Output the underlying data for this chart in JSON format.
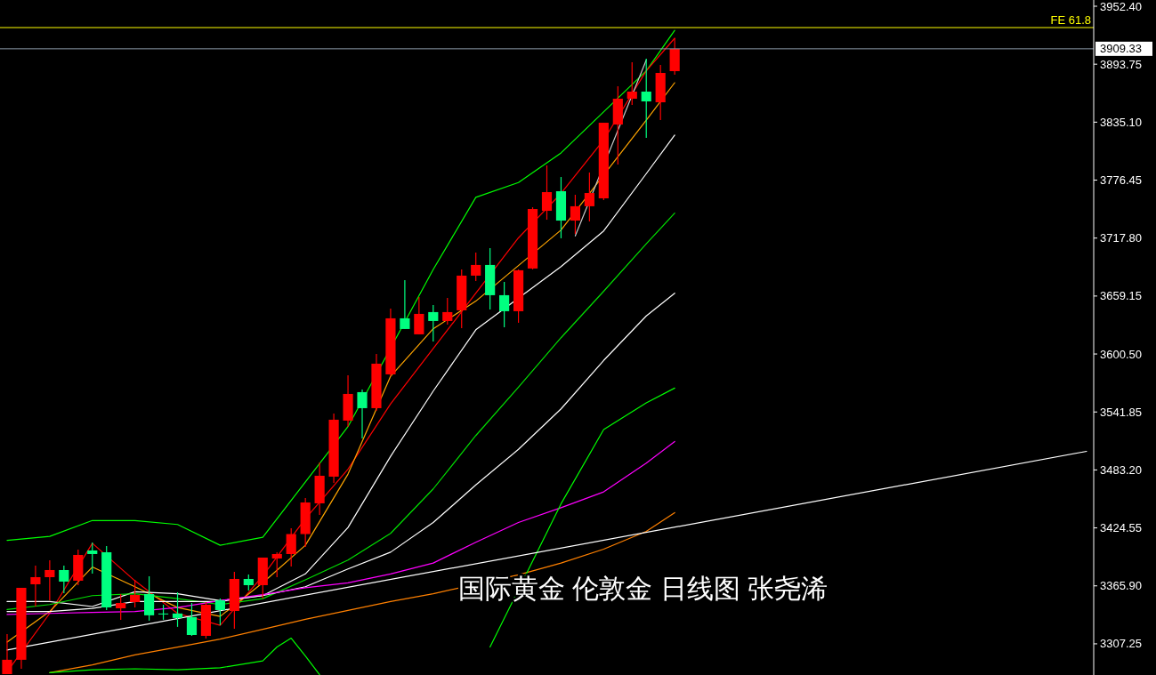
{
  "chart_data": {
    "type": "candlestick",
    "categories": [
      null,
      null,
      null,
      null,
      null,
      null,
      null,
      null,
      null,
      null,
      null,
      null,
      null,
      null,
      null,
      null,
      null,
      null,
      null,
      null,
      null,
      null,
      null,
      null,
      null,
      null,
      null,
      null,
      null,
      null,
      null,
      null,
      null,
      null,
      null,
      null,
      null,
      null,
      null,
      null,
      null,
      null,
      null,
      null,
      null,
      null,
      null,
      null,
      null,
      null,
      null,
      null,
      null,
      null,
      null,
      null,
      null,
      null,
      null,
      null,
      null,
      null,
      null,
      null,
      null,
      null,
      null,
      null,
      null,
      null,
      null,
      null,
      null,
      null,
      null,
      null,
      null
    ],
    "ohlc": [
      [
        3276.6,
        3317.1,
        3276.6,
        3291.1
      ],
      [
        3291.1,
        3363.9,
        3282.0,
        3363.9
      ],
      [
        3367.5,
        3386.4,
        3345.0,
        3374.7
      ],
      [
        3374.7,
        3391.8,
        3351.3,
        3381.9
      ],
      [
        3381.9,
        3386.4,
        3358.5,
        3370.2
      ],
      [
        3371.1,
        3402.6,
        3366.6,
        3397.2
      ],
      [
        3401.7,
        3409.8,
        3378.3,
        3398.1
      ],
      [
        3399.9,
        3406.2,
        3341.4,
        3344.1
      ],
      [
        3343.2,
        3357.6,
        3331.6,
        3348.6
      ],
      [
        3349.5,
        3372.0,
        3344.1,
        3356.7
      ],
      [
        3357.6,
        3375.6,
        3330.7,
        3336.1
      ],
      [
        3337.9,
        3346.8,
        3331.6,
        3337.0
      ],
      [
        3337.9,
        3359.4,
        3324.4,
        3333.4
      ],
      [
        3334.3,
        3348.6,
        3315.3,
        3316.2
      ],
      [
        3315.3,
        3349.5,
        3312.6,
        3346.8
      ],
      [
        3351.3,
        3353.1,
        3326.2,
        3341.4
      ],
      [
        3340.5,
        3380.1,
        3322.5,
        3372.9
      ],
      [
        3372.9,
        3377.4,
        3361.2,
        3366.6
      ],
      [
        3366.6,
        3394.5,
        3353.1,
        3394.5
      ],
      [
        3393.6,
        3399.9,
        3374.7,
        3398.1
      ],
      [
        3398.1,
        3424.2,
        3385.5,
        3418.3
      ],
      [
        3418.3,
        3454.8,
        3405.3,
        3450.3
      ],
      [
        3449.4,
        3490.8,
        3437.7,
        3477.3
      ],
      [
        3476.4,
        3540.3,
        3470.1,
        3534.0
      ],
      [
        3533.1,
        3579.0,
        3526.8,
        3560.1
      ],
      [
        3561.9,
        3564.6,
        3515.1,
        3545.7
      ],
      [
        3545.7,
        3600.6,
        3543.0,
        3590.7
      ],
      [
        3579.9,
        3646.5,
        3578.1,
        3636.6
      ],
      [
        3636.6,
        3675.3,
        3625.8,
        3625.8
      ],
      [
        3620.4,
        3658.2,
        3620.4,
        3641.1
      ],
      [
        3642.9,
        3650.1,
        3613.2,
        3633.9
      ],
      [
        3633.9,
        3657.3,
        3630.3,
        3642.9
      ],
      [
        3644.7,
        3686.1,
        3626.7,
        3679.8
      ],
      [
        3679.8,
        3703.2,
        3674.4,
        3690.6
      ],
      [
        3690.6,
        3707.7,
        3645.6,
        3660.0
      ],
      [
        3660.0,
        3673.5,
        3627.6,
        3643.8
      ],
      [
        3643.8,
        3686.1,
        3632.1,
        3685.2
      ],
      [
        3687.0,
        3749.0,
        3686.1,
        3747.2
      ],
      [
        3745.4,
        3791.3,
        3736.4,
        3764.3
      ],
      [
        3765.2,
        3779.6,
        3717.6,
        3735.5
      ],
      [
        3735.5,
        3761.6,
        3722.0,
        3750.0
      ],
      [
        3750.0,
        3784.1,
        3734.7,
        3763.4
      ],
      [
        3758.0,
        3834.5,
        3756.3,
        3834.5
      ],
      [
        3832.7,
        3871.4,
        3792.2,
        3858.8
      ],
      [
        3858.8,
        3895.7,
        3852.5,
        3866.0
      ],
      [
        3866.0,
        3899.3,
        3819.2,
        3856.1
      ],
      [
        3855.2,
        3893.0,
        3837.2,
        3884.9
      ],
      [
        3886.7,
        3920.0,
        3883.1,
        3909.3
      ],
      null,
      null,
      null,
      null,
      null,
      null,
      null,
      null,
      null,
      null,
      null,
      null,
      null,
      null,
      null,
      null,
      null,
      null,
      null,
      null,
      null,
      null,
      null,
      null,
      null,
      null,
      null,
      null,
      null
    ],
    "series": [
      {
        "type": "line",
        "color": "#00ff00",
        "values": [
          3412,
          null,
          null,
          3416,
          null,
          null,
          3432,
          null,
          null,
          3432,
          null,
          null,
          3428,
          null,
          null,
          3407,
          null,
          null,
          3415,
          null,
          null,
          null,
          null,
          null,
          3527,
          null,
          null,
          null,
          null,
          null,
          3686,
          null,
          null,
          3759,
          null,
          null,
          3774,
          null,
          null,
          3804,
          null,
          null,
          null,
          null,
          null,
          3887,
          null,
          3928,
          null,
          null,
          null,
          null,
          null,
          null,
          null,
          null,
          null,
          null,
          null,
          null,
          null,
          null,
          null,
          null,
          null,
          null,
          null,
          null,
          null,
          null,
          null,
          null,
          null,
          null,
          null,
          null,
          null
        ]
      },
      {
        "type": "line",
        "color": "#ff0000",
        "values": [
          3279,
          null,
          null,
          3338,
          null,
          null,
          3409,
          null,
          null,
          3371,
          null,
          null,
          3338,
          null,
          null,
          3326,
          null,
          null,
          3376,
          null,
          null,
          3434,
          null,
          null,
          3484,
          null,
          null,
          3550,
          null,
          null,
          3606,
          null,
          null,
          3662,
          null,
          null,
          3718,
          null,
          null,
          3763,
          null,
          null,
          3817,
          null,
          null,
          3887,
          null,
          3920,
          null,
          null,
          null,
          null,
          null,
          null,
          null,
          null,
          null,
          null,
          null,
          null,
          null,
          null,
          null,
          null,
          null,
          null,
          null,
          null,
          null,
          null,
          null,
          null,
          null,
          null,
          null,
          null,
          null
        ]
      },
      {
        "type": "line",
        "color": "#ffa500",
        "values": [
          3309,
          null,
          null,
          3340,
          null,
          null,
          3385,
          null,
          null,
          3365,
          null,
          null,
          3344,
          null,
          null,
          3335,
          null,
          null,
          3369,
          null,
          null,
          3407,
          null,
          null,
          3479,
          null,
          null,
          3578,
          null,
          null,
          3626,
          null,
          null,
          3654,
          null,
          null,
          null,
          null,
          null,
          3726,
          null,
          null,
          null,
          null,
          null,
          3837,
          null,
          3875,
          null,
          null,
          null,
          null,
          null,
          null,
          null,
          null,
          null,
          null,
          null,
          null,
          null,
          null,
          null,
          null,
          null,
          null,
          null,
          null,
          null,
          null,
          null,
          null,
          null,
          null,
          null,
          null,
          null
        ]
      },
      {
        "type": "line",
        "color": "#ffffff",
        "values": [
          3350,
          null,
          null,
          3350,
          null,
          null,
          3345,
          null,
          null,
          3360,
          null,
          null,
          3358,
          null,
          null,
          3351,
          null,
          null,
          3356,
          null,
          null,
          3378,
          null,
          null,
          3425,
          null,
          null,
          3497,
          null,
          null,
          3563,
          null,
          null,
          3625,
          null,
          null,
          null,
          null,
          null,
          3689,
          null,
          null,
          3725,
          null,
          null,
          3783,
          null,
          3822,
          null,
          null,
          null,
          null,
          null,
          null,
          null,
          null,
          null,
          null,
          null,
          null,
          null,
          null,
          null,
          null,
          null,
          null,
          null,
          null,
          null,
          null,
          null,
          null,
          null,
          null,
          null,
          null,
          null
        ]
      },
      {
        "type": "line",
        "color": "#00e000",
        "values": [
          3342,
          null,
          null,
          3347,
          null,
          null,
          3356,
          null,
          null,
          3358,
          null,
          null,
          3353,
          null,
          null,
          3347,
          null,
          null,
          3353,
          null,
          null,
          3372,
          null,
          null,
          3392,
          null,
          null,
          3419,
          null,
          null,
          3464,
          null,
          null,
          3518,
          null,
          null,
          3567,
          null,
          null,
          3617,
          null,
          null,
          3664,
          null,
          null,
          3712,
          null,
          3743,
          null,
          null,
          null,
          null,
          null,
          null,
          null,
          null,
          null,
          null,
          null,
          null,
          null,
          null,
          null,
          null,
          null,
          null,
          null,
          null,
          null,
          null,
          null,
          null,
          null,
          null,
          null,
          null,
          null
        ]
      },
      {
        "type": "line",
        "color": "#ffffff",
        "values": [
          3340,
          null,
          null,
          3340,
          null,
          null,
          3343,
          null,
          null,
          3350,
          null,
          null,
          3350,
          null,
          null,
          3350,
          null,
          null,
          3356,
          null,
          null,
          3365,
          null,
          null,
          3383,
          null,
          null,
          3400,
          null,
          null,
          3430,
          null,
          null,
          3468,
          null,
          null,
          3504,
          null,
          null,
          3545,
          null,
          null,
          3594,
          null,
          null,
          3639,
          null,
          3662,
          null,
          null,
          null,
          null,
          null,
          null,
          null,
          null,
          null,
          null,
          null,
          null,
          null,
          null,
          null,
          null,
          null,
          null,
          null,
          null,
          null,
          null,
          null,
          null,
          null,
          null,
          null,
          null,
          null
        ]
      },
      {
        "type": "line",
        "color": "#ff00ff",
        "values": [
          3337,
          null,
          null,
          3338,
          null,
          null,
          3339,
          null,
          null,
          3340,
          null,
          null,
          3344,
          null,
          null,
          3351,
          null,
          null,
          3357,
          null,
          null,
          3364,
          null,
          null,
          3369,
          null,
          null,
          3378,
          null,
          null,
          3389,
          null,
          null,
          3410,
          null,
          null,
          3430,
          null,
          null,
          3445,
          null,
          null,
          3461,
          null,
          null,
          3490,
          null,
          3512,
          null,
          null,
          null,
          null,
          null,
          null,
          null,
          null,
          null,
          null,
          null,
          null,
          null,
          null,
          null,
          null,
          null,
          null,
          null,
          null,
          null,
          null,
          null,
          null,
          null,
          null,
          null,
          null,
          null
        ]
      },
      {
        "type": "line",
        "color": "#ff8000",
        "values": [
          null,
          null,
          null,
          3278,
          null,
          null,
          3286,
          null,
          null,
          3296,
          null,
          null,
          3304,
          null,
          null,
          3312,
          null,
          null,
          3322,
          null,
          null,
          3332,
          null,
          null,
          3341,
          null,
          null,
          3350,
          null,
          null,
          3358,
          null,
          null,
          null,
          null,
          null,
          3377,
          null,
          null,
          3389,
          null,
          null,
          3403,
          null,
          null,
          3421,
          null,
          3440,
          null,
          null,
          null,
          null,
          null,
          null,
          null,
          null,
          null,
          null,
          null,
          null,
          null,
          null,
          null,
          null,
          null,
          null,
          null,
          null,
          null,
          null,
          null,
          null,
          null,
          null,
          null,
          null,
          null
        ]
      },
      {
        "type": "line",
        "color": "#00ff00",
        "values": [
          null,
          null,
          null,
          3278,
          null,
          null,
          3281,
          null,
          null,
          3282,
          null,
          null,
          3281,
          null,
          null,
          3283,
          null,
          null,
          3290,
          3304,
          3313,
          3295,
          3276,
          null,
          null,
          null,
          null,
          null,
          null,
          null,
          null,
          null,
          null,
          null,
          null,
          null,
          null,
          null,
          null,
          null,
          null,
          null,
          null,
          null,
          null,
          null,
          null,
          null,
          null,
          null,
          null,
          null,
          null,
          null,
          null,
          null,
          null,
          null,
          null,
          null,
          null,
          null,
          null,
          null,
          null,
          null,
          null,
          null,
          null,
          null,
          null,
          null,
          null,
          null,
          null,
          null,
          null
        ]
      },
      {
        "type": "line",
        "color": "#00ff00",
        "values": [
          null,
          null,
          null,
          null,
          null,
          null,
          null,
          null,
          null,
          null,
          null,
          null,
          null,
          null,
          null,
          null,
          null,
          null,
          null,
          null,
          null,
          null,
          null,
          null,
          null,
          null,
          null,
          null,
          null,
          null,
          null,
          null,
          null,
          null,
          3304,
          null,
          null,
          null,
          null,
          3449,
          null,
          null,
          3524,
          null,
          null,
          3551,
          null,
          3566,
          null,
          null,
          null,
          null,
          null,
          null,
          null,
          null,
          null,
          null,
          null,
          null,
          null,
          null,
          null,
          null,
          null,
          null,
          null,
          null,
          null,
          null,
          null,
          null,
          null,
          null,
          null,
          null,
          null
        ]
      },
      {
        "type": "line",
        "color": "#c8c8c8",
        "values": [
          null,
          null,
          null,
          null,
          null,
          null,
          null,
          null,
          null,
          null,
          null,
          null,
          null,
          null,
          null,
          null,
          null,
          null,
          null,
          null,
          null,
          null,
          null,
          null,
          null,
          null,
          null,
          null,
          null,
          null,
          null,
          null,
          null,
          null,
          null,
          null,
          null,
          null,
          null,
          null,
          3720,
          null,
          null,
          null,
          null,
          3898,
          null,
          null,
          null,
          null,
          null,
          null,
          null,
          null,
          null,
          null,
          null,
          null,
          null,
          null,
          null,
          null,
          null,
          null,
          null,
          null,
          null,
          null,
          null,
          null,
          null,
          null,
          null,
          null,
          null,
          null,
          null
        ]
      },
      {
        "type": "line",
        "color": "#ffffff",
        "values": [
          3301,
          null,
          null,
          null,
          null,
          null,
          null,
          null,
          null,
          null,
          null,
          null,
          null,
          null,
          null,
          null,
          null,
          null,
          null,
          null,
          null,
          null,
          null,
          null,
          null,
          null,
          null,
          null,
          null,
          null,
          null,
          null,
          null,
          null,
          null,
          null,
          null,
          null,
          null,
          null,
          null,
          null,
          null,
          null,
          null,
          null,
          null,
          null,
          null,
          null,
          null,
          null,
          null,
          null,
          null,
          null,
          null,
          null,
          null,
          null,
          null,
          null,
          null,
          null,
          null,
          null,
          null,
          null,
          null,
          null,
          null,
          null,
          null,
          null,
          null,
          null,
          3502
        ]
      }
    ],
    "ylim": [
      3275.7,
      3958.7
    ],
    "yticks": [
      {
        "value": 3952.4,
        "label": "3952.40"
      },
      {
        "value": 3893.75,
        "label": "3893.75"
      },
      {
        "value": 3835.1,
        "label": "3835.10"
      },
      {
        "value": 3776.45,
        "label": "3776.45"
      },
      {
        "value": 3717.8,
        "label": "3717.80"
      },
      {
        "value": 3659.15,
        "label": "3659.15"
      },
      {
        "value": 3600.5,
        "label": "3600.50"
      },
      {
        "value": 3541.85,
        "label": "3541.85"
      },
      {
        "value": 3483.2,
        "label": "3483.20"
      },
      {
        "value": 3424.55,
        "label": "3424.55"
      },
      {
        "value": 3365.9,
        "label": "3365.90"
      },
      {
        "value": 3307.25,
        "label": "3307.25"
      }
    ],
    "tick_labels": "y",
    "ref_lines": [
      {
        "axis": "y",
        "value": 3909.33,
        "label": "3909.33",
        "color": "#8a9aa8"
      },
      {
        "axis": "y",
        "value": 3930.8,
        "label": "FE 61.8",
        "color": "#ffff00"
      }
    ],
    "annotations": [
      "国际黄金 伦敦金 日线图 张尧浠"
    ]
  }
}
